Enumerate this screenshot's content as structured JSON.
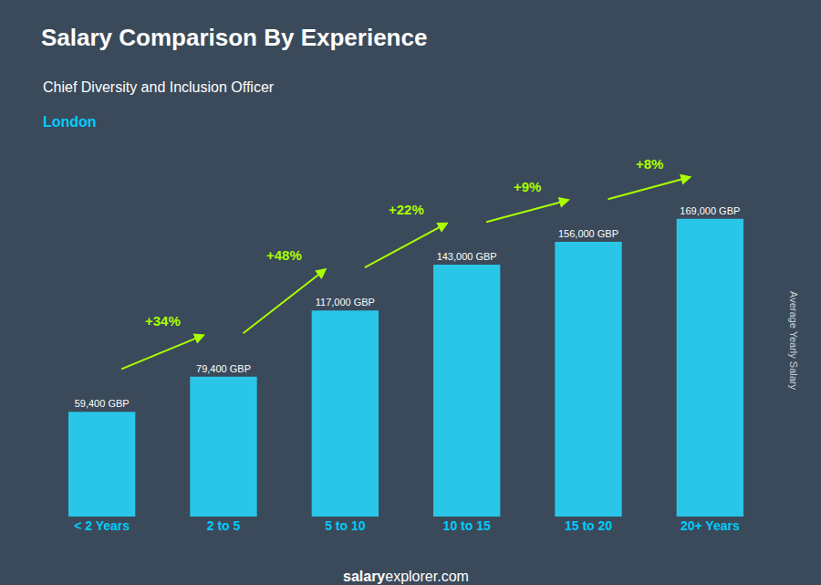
{
  "chart_data": {
    "type": "bar",
    "title": "Salary Comparison By Experience",
    "subtitle": "Chief Diversity and Inclusion Officer",
    "categories": [
      "< 2 Years",
      "2 to 5",
      "5 to 10",
      "10 to 15",
      "15 to 20",
      "20+ Years"
    ],
    "values": [
      59400,
      79400,
      117000,
      143000,
      156000,
      169000
    ],
    "value_labels": [
      "59,400 GBP",
      "79,400 GBP",
      "117,000 GBP",
      "143,000 GBP",
      "156,000 GBP",
      "169,000 GBP"
    ],
    "data_labels": true,
    "color": "#29c6e8",
    "ylim": [
      0,
      200000
    ],
    "tick_labels": "x",
    "grid": false,
    "annotations": [
      "+34%",
      "+48%",
      "+22%",
      "+9%",
      "+8%",
      "London",
      "Average Yearly Salary",
      "salary",
      "explorer.com"
    ]
  }
}
